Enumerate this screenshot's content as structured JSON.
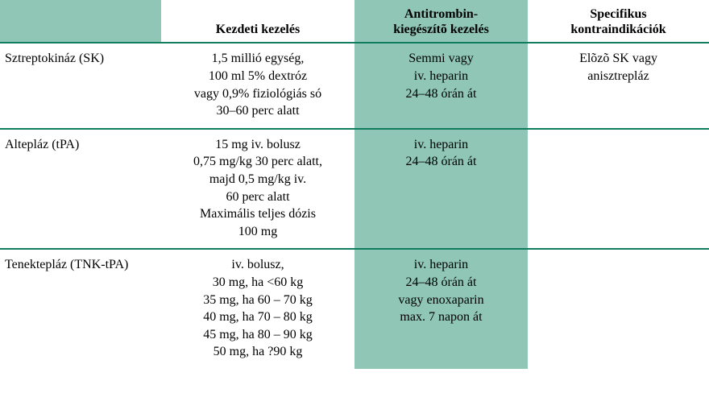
{
  "table": {
    "colors": {
      "border": "#0f7d5e",
      "teal_bg": "#8fc6b6",
      "white": "#ffffff",
      "text": "#000000"
    },
    "font_size": 16,
    "headers": {
      "c0": "",
      "c1": "Kezdeti kezelés",
      "c2_l1": "Antitrombin-",
      "c2_l2": "kiegészítõ kezelés",
      "c3_l1": "Specifikus",
      "c3_l2": "kontraindikációk"
    },
    "rows": [
      {
        "label": "Sztreptokináz (SK)",
        "c1": [
          "1,5 millió egység,",
          "100 ml 5% dextróz",
          "vagy 0,9% fiziológiás só",
          "30–60 perc alatt"
        ],
        "c2": [
          "Semmi vagy",
          "iv. heparin",
          "24–48 órán át"
        ],
        "c3": [
          "Elõzõ SK vagy",
          "anisztrepláz"
        ]
      },
      {
        "label": "Altepláz (tPA)",
        "c1": [
          "15 mg iv. bolusz",
          "0,75 mg/kg 30 perc alatt,",
          "majd 0,5 mg/kg iv.",
          "60 perc alatt",
          "Maximális teljes dózis",
          "100 mg"
        ],
        "c2": [
          "iv. heparin",
          "24–48 órán át"
        ],
        "c3": []
      },
      {
        "label": "Tenektepláz (TNK-tPA)",
        "c1": [
          "iv. bolusz,",
          "30 mg, ha <60 kg",
          "35 mg, ha 60 – 70 kg",
          "40 mg, ha 70 – 80 kg",
          "45 mg, ha 80 – 90 kg",
          "50 mg, ha ?90 kg"
        ],
        "c2": [
          "iv. heparin",
          "24–48 órán át",
          "vagy enoxaparin",
          "max. 7 napon át"
        ],
        "c3": []
      }
    ]
  }
}
